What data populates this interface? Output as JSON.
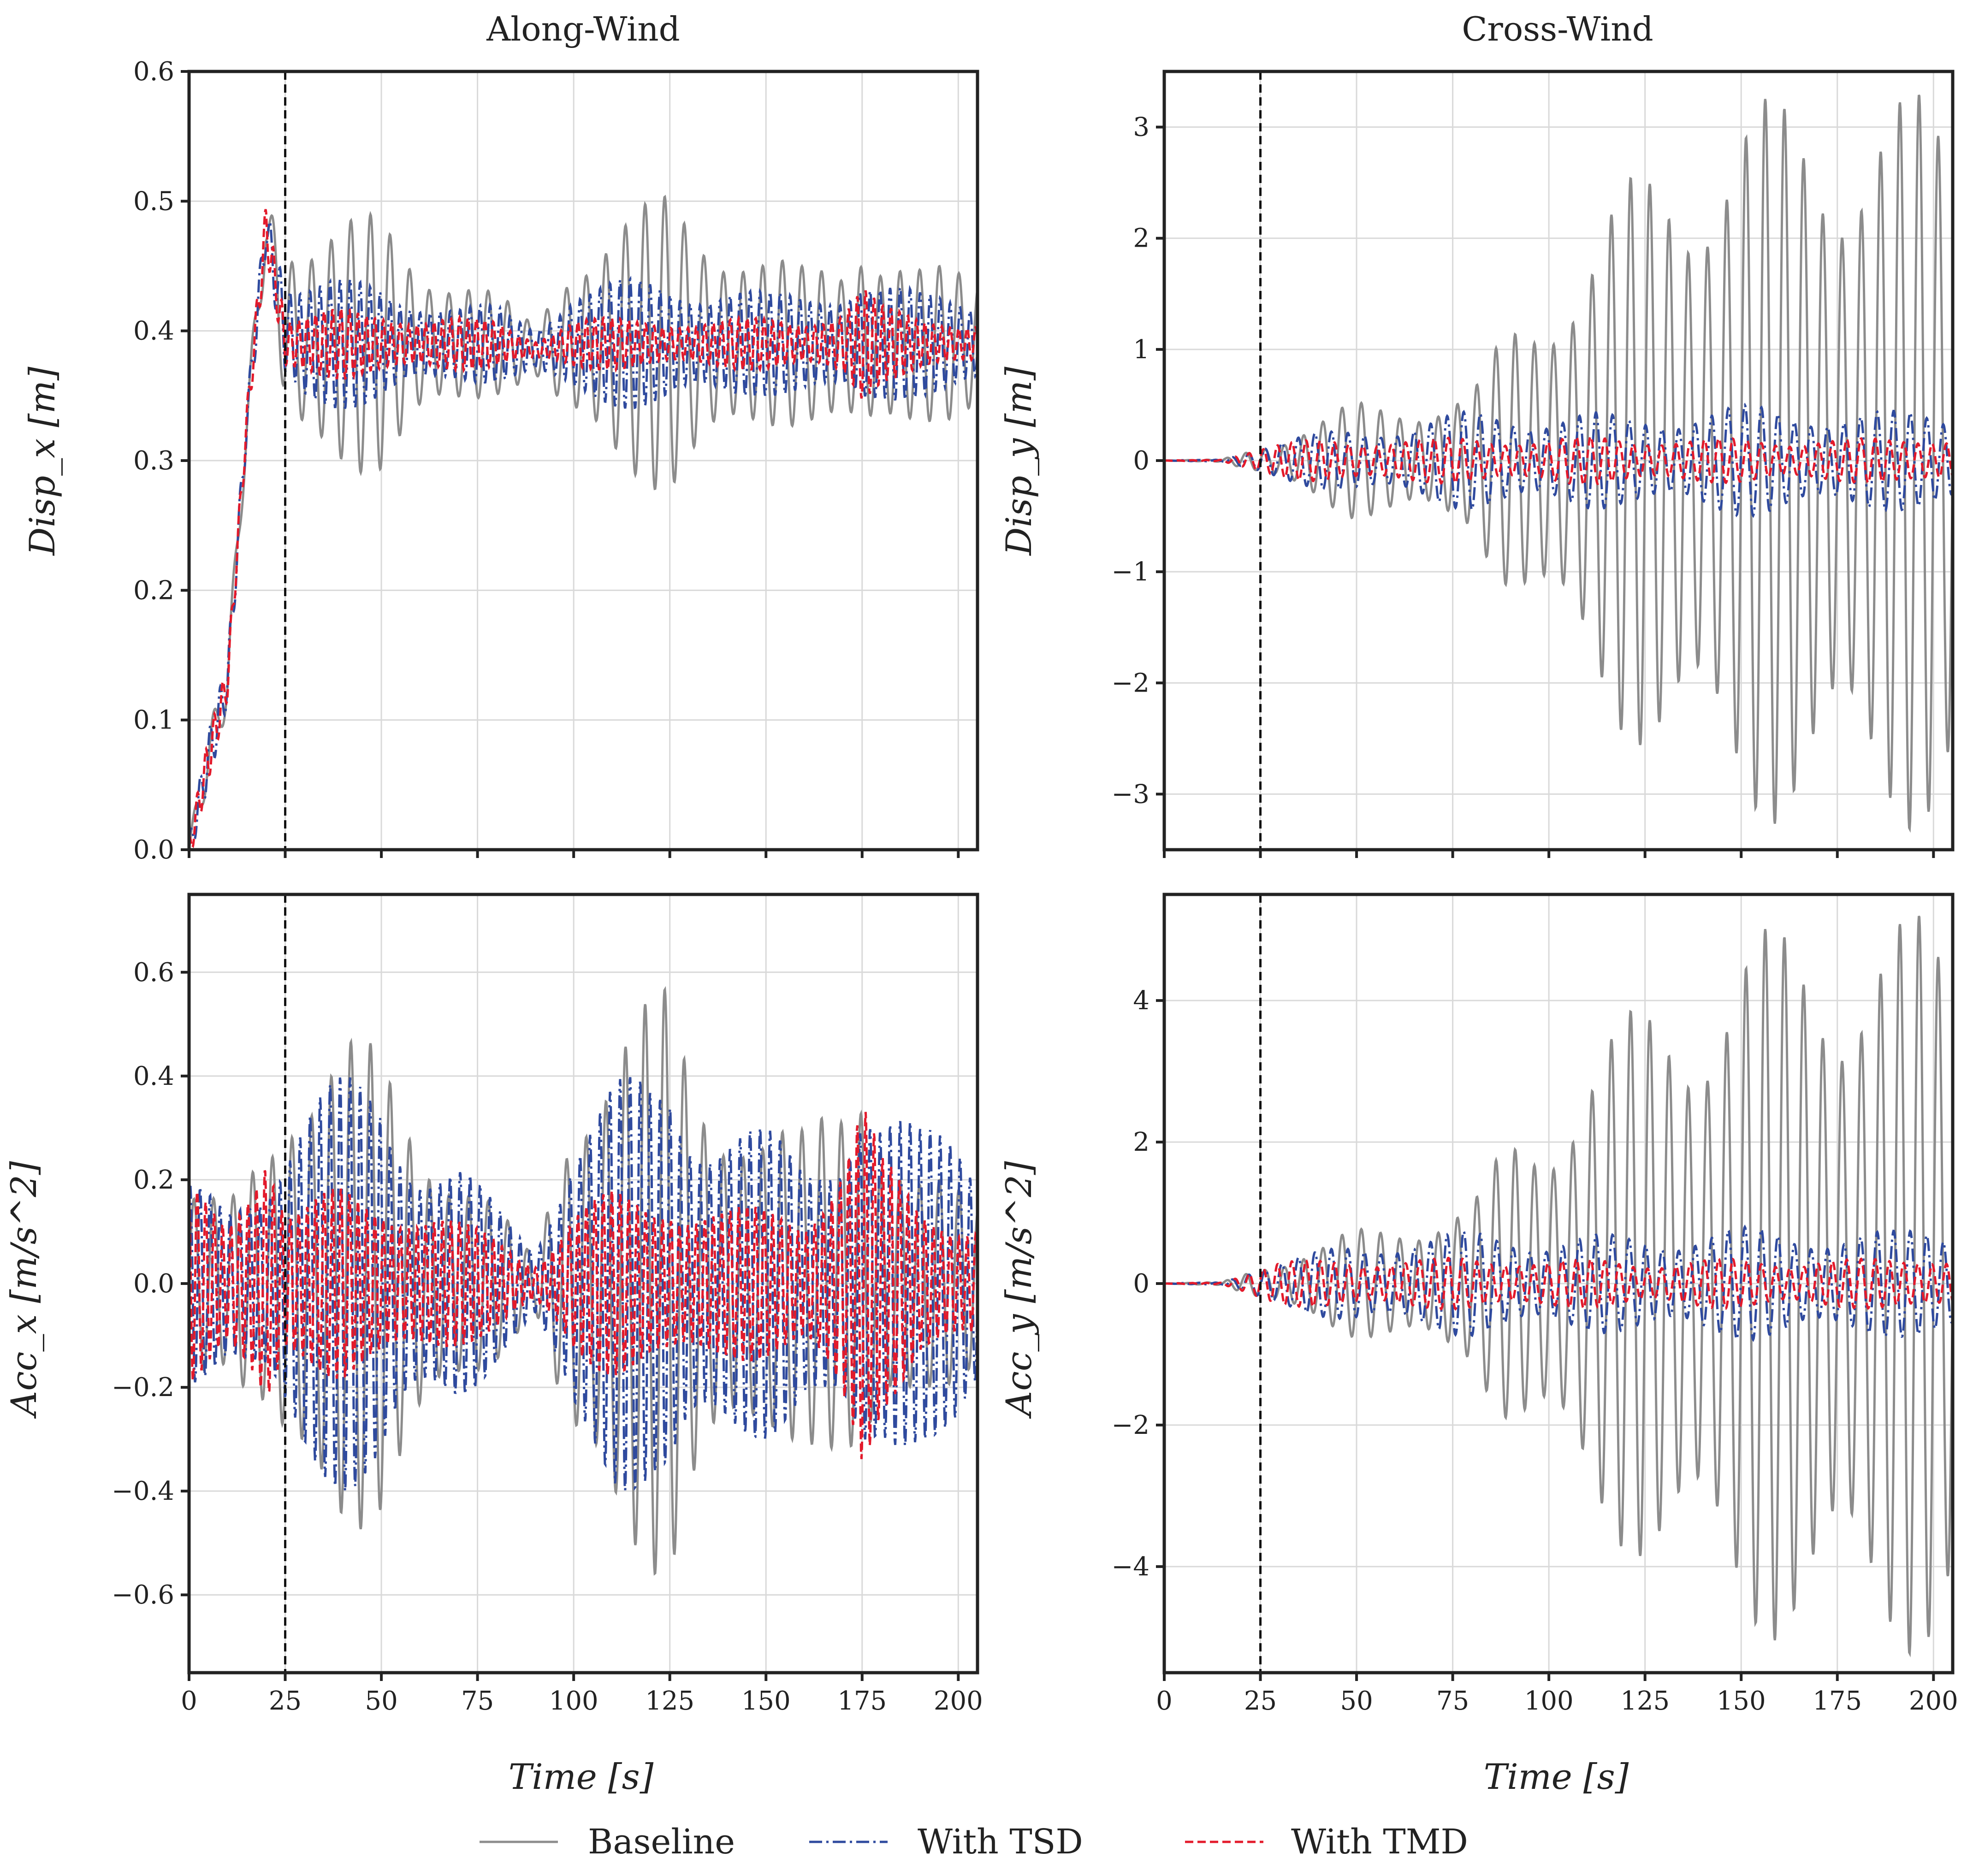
{
  "chart_data": [
    {
      "type": "line",
      "id": "along-disp",
      "title": "Along-Wind",
      "xlabel": "",
      "ylabel": "Disp_x [m]",
      "xlim": [
        0,
        205
      ],
      "ylim": [
        0,
        0.6
      ],
      "xticks": [
        "0",
        "25",
        "50",
        "75",
        "100",
        "125",
        "150",
        "175",
        "200"
      ],
      "yticks": [
        "0.0",
        "0.1",
        "0.2",
        "0.3",
        "0.4",
        "0.5",
        "0.6"
      ],
      "grid": true,
      "vline_x": 25,
      "series": [
        {
          "name": "Baseline",
          "env_x": [
            0,
            5,
            10,
            15,
            20,
            25,
            30,
            40,
            50,
            60,
            70,
            80,
            90,
            100,
            110,
            120,
            125,
            130,
            140,
            150,
            160,
            170,
            175,
            180,
            190,
            200,
            205
          ],
          "mean": [
            0,
            0.07,
            0.13,
            0.33,
            0.48,
            0.4,
            0.39,
            0.39,
            0.39,
            0.39,
            0.39,
            0.39,
            0.385,
            0.39,
            0.39,
            0.39,
            0.39,
            0.39,
            0.39,
            0.39,
            0.39,
            0.39,
            0.39,
            0.39,
            0.39,
            0.39,
            0.39
          ],
          "amp": [
            0.01,
            0.02,
            0.02,
            0.02,
            0.03,
            0.09,
            0.1,
            0.1,
            0.1,
            0.07,
            0.06,
            0.04,
            0.02,
            0.08,
            0.1,
            0.11,
            0.12,
            0.11,
            0.09,
            0.07,
            0.06,
            0.07,
            0.1,
            0.08,
            0.06,
            0.06,
            0.06
          ],
          "period": 5.1
        },
        {
          "name": "With TSD",
          "env_x": [
            0,
            5,
            10,
            15,
            20,
            25,
            30,
            40,
            50,
            60,
            70,
            80,
            90,
            100,
            110,
            120,
            125,
            130,
            140,
            150,
            160,
            170,
            175,
            180,
            190,
            200,
            205
          ],
          "mean": [
            0,
            0.07,
            0.13,
            0.33,
            0.48,
            0.4,
            0.39,
            0.39,
            0.39,
            0.39,
            0.39,
            0.39,
            0.385,
            0.39,
            0.39,
            0.39,
            0.39,
            0.39,
            0.39,
            0.39,
            0.39,
            0.39,
            0.39,
            0.39,
            0.39,
            0.39,
            0.39
          ],
          "amp": [
            0.01,
            0.02,
            0.02,
            0.02,
            0.03,
            0.05,
            0.05,
            0.05,
            0.05,
            0.04,
            0.03,
            0.03,
            0.02,
            0.05,
            0.05,
            0.05,
            0.05,
            0.05,
            0.05,
            0.04,
            0.04,
            0.05,
            0.06,
            0.05,
            0.04,
            0.04,
            0.04
          ],
          "period": 2.6
        },
        {
          "name": "With TMD",
          "env_x": [
            0,
            5,
            10,
            15,
            20,
            25,
            30,
            40,
            50,
            60,
            70,
            80,
            90,
            100,
            110,
            120,
            125,
            130,
            140,
            150,
            160,
            170,
            175,
            180,
            190,
            200,
            205
          ],
          "mean": [
            0,
            0.07,
            0.13,
            0.33,
            0.48,
            0.39,
            0.39,
            0.39,
            0.39,
            0.39,
            0.39,
            0.39,
            0.385,
            0.39,
            0.39,
            0.39,
            0.39,
            0.39,
            0.39,
            0.39,
            0.39,
            0.39,
            0.39,
            0.39,
            0.39,
            0.39,
            0.39
          ],
          "amp": [
            0.01,
            0.02,
            0.02,
            0.02,
            0.03,
            0.02,
            0.02,
            0.03,
            0.03,
            0.02,
            0.02,
            0.02,
            0.01,
            0.02,
            0.02,
            0.02,
            0.02,
            0.02,
            0.02,
            0.02,
            0.02,
            0.03,
            0.05,
            0.03,
            0.02,
            0.02,
            0.02
          ],
          "period": 2.2
        }
      ]
    },
    {
      "type": "line",
      "id": "cross-disp",
      "title": "Cross-Wind",
      "xlabel": "",
      "ylabel": "Disp_y [m]",
      "xlim": [
        0,
        205
      ],
      "ylim": [
        -3.5,
        3.5
      ],
      "xticks": [
        "0",
        "25",
        "50",
        "75",
        "100",
        "125",
        "150",
        "175",
        "200"
      ],
      "yticks": [
        "−3",
        "−2",
        "−1",
        "0",
        "1",
        "2",
        "3"
      ],
      "grid": true,
      "vline_x": 25,
      "series": [
        {
          "name": "Baseline",
          "env_x": [
            0,
            15,
            20,
            25,
            30,
            40,
            50,
            60,
            70,
            80,
            90,
            100,
            110,
            120,
            130,
            140,
            150,
            160,
            170,
            180,
            190,
            200,
            205
          ],
          "mean": [
            0,
            0,
            0,
            0,
            0,
            0,
            0,
            0,
            0,
            0,
            0,
            0,
            0,
            0,
            0,
            0,
            0,
            0,
            0,
            0,
            0,
            0,
            0
          ],
          "amp": [
            0,
            0.01,
            0.08,
            0.15,
            0.2,
            0.35,
            0.55,
            0.6,
            0.55,
            0.6,
            1.3,
            1.7,
            2.0,
            2.5,
            2.9,
            3.1,
            3.2,
            3.3,
            3.4,
            3.3,
            3.3,
            3.35,
            3.3
          ],
          "period": 5.0
        },
        {
          "name": "With TSD",
          "env_x": [
            0,
            15,
            20,
            25,
            30,
            40,
            50,
            60,
            70,
            80,
            90,
            100,
            110,
            120,
            130,
            140,
            150,
            160,
            170,
            180,
            190,
            200,
            205
          ],
          "mean": [
            0,
            0,
            0,
            0,
            0,
            0,
            0,
            0,
            0,
            0,
            0,
            0,
            0,
            0,
            0,
            0,
            0,
            0,
            0,
            0,
            0,
            0,
            0
          ],
          "amp": [
            0,
            0.01,
            0.08,
            0.15,
            0.2,
            0.25,
            0.3,
            0.35,
            0.4,
            0.45,
            0.45,
            0.45,
            0.45,
            0.4,
            0.45,
            0.5,
            0.5,
            0.5,
            0.5,
            0.45,
            0.45,
            0.5,
            0.5
          ],
          "period": 4.3
        },
        {
          "name": "With TMD",
          "env_x": [
            0,
            15,
            20,
            25,
            30,
            40,
            50,
            60,
            70,
            80,
            90,
            100,
            110,
            120,
            130,
            140,
            150,
            160,
            170,
            180,
            190,
            200,
            205
          ],
          "mean": [
            0,
            0,
            0,
            0,
            0,
            0,
            0,
            0,
            0,
            0,
            0,
            0,
            0,
            0,
            0,
            0,
            0,
            0,
            0,
            0,
            0,
            0,
            0
          ],
          "amp": [
            0,
            0.01,
            0.08,
            0.12,
            0.15,
            0.2,
            0.22,
            0.2,
            0.2,
            0.22,
            0.22,
            0.2,
            0.22,
            0.22,
            0.22,
            0.2,
            0.2,
            0.2,
            0.22,
            0.2,
            0.2,
            0.25,
            0.25
          ],
          "period": 3.7
        }
      ]
    },
    {
      "type": "line",
      "id": "along-acc",
      "title": "",
      "xlabel": "Time [s]",
      "ylabel": "Acc_x [m/s^2]",
      "xlim": [
        0,
        205
      ],
      "ylim": [
        -0.75,
        0.75
      ],
      "xticks": [
        "0",
        "25",
        "50",
        "75",
        "100",
        "125",
        "150",
        "175",
        "200"
      ],
      "yticks": [
        "−0.6",
        "−0.4",
        "−0.2",
        "0.0",
        "0.2",
        "0.4",
        "0.6"
      ],
      "grid": true,
      "vline_x": 25,
      "series": [
        {
          "name": "Baseline",
          "env_x": [
            0,
            10,
            20,
            25,
            30,
            40,
            50,
            60,
            70,
            80,
            90,
            100,
            110,
            120,
            125,
            130,
            140,
            150,
            160,
            170,
            175,
            180,
            190,
            200,
            205
          ],
          "mean": [
            0,
            0,
            0,
            0,
            0,
            0,
            0,
            0,
            0,
            0,
            0,
            0,
            0,
            0,
            0,
            0,
            0,
            0,
            0,
            0,
            0,
            0,
            0,
            0,
            0
          ],
          "amp": [
            0.2,
            0.15,
            0.3,
            0.45,
            0.5,
            0.5,
            0.45,
            0.35,
            0.25,
            0.15,
            0.05,
            0.45,
            0.5,
            0.55,
            0.6,
            0.5,
            0.4,
            0.3,
            0.3,
            0.45,
            0.55,
            0.3,
            0.2,
            0.2,
            0.2
          ],
          "period": 5.1
        },
        {
          "name": "With TSD",
          "env_x": [
            0,
            10,
            20,
            25,
            30,
            40,
            50,
            60,
            70,
            80,
            90,
            100,
            110,
            120,
            125,
            130,
            140,
            150,
            160,
            170,
            175,
            180,
            190,
            200,
            205
          ],
          "mean": [
            0,
            0,
            0,
            0,
            0,
            0,
            0,
            0,
            0,
            0,
            0,
            0,
            0,
            0,
            0,
            0,
            0,
            0,
            0,
            0,
            0,
            0,
            0,
            0,
            0
          ],
          "amp": [
            0.2,
            0.15,
            0.25,
            0.35,
            0.4,
            0.4,
            0.4,
            0.3,
            0.25,
            0.15,
            0.08,
            0.35,
            0.4,
            0.4,
            0.45,
            0.4,
            0.35,
            0.3,
            0.25,
            0.35,
            0.45,
            0.35,
            0.3,
            0.35,
            0.3
          ],
          "period": 2.6
        },
        {
          "name": "With TMD",
          "env_x": [
            0,
            10,
            20,
            25,
            30,
            40,
            50,
            60,
            70,
            80,
            90,
            100,
            110,
            120,
            125,
            130,
            140,
            150,
            160,
            170,
            175,
            180,
            190,
            200,
            205
          ],
          "mean": [
            0,
            0,
            0,
            0,
            0,
            0,
            0,
            0,
            0,
            0,
            0,
            0,
            0,
            0,
            0,
            0,
            0,
            0,
            0,
            0,
            0,
            0,
            0,
            0,
            0
          ],
          "amp": [
            0.2,
            0.15,
            0.35,
            0.15,
            0.15,
            0.2,
            0.2,
            0.15,
            0.12,
            0.1,
            0.05,
            0.15,
            0.18,
            0.18,
            0.2,
            0.18,
            0.15,
            0.15,
            0.15,
            0.3,
            0.4,
            0.25,
            0.15,
            0.15,
            0.15
          ],
          "period": 2.2
        }
      ]
    },
    {
      "type": "line",
      "id": "cross-acc",
      "title": "",
      "xlabel": "Time [s]",
      "ylabel": "Acc_y [m/s^2]",
      "xlim": [
        0,
        205
      ],
      "ylim": [
        -5.5,
        5.5
      ],
      "xticks": [
        "0",
        "25",
        "50",
        "75",
        "100",
        "125",
        "150",
        "175",
        "200"
      ],
      "yticks": [
        "−4",
        "−2",
        "0",
        "2",
        "4"
      ],
      "grid": true,
      "vline_x": 25,
      "series": [
        {
          "name": "Baseline",
          "env_x": [
            0,
            15,
            20,
            25,
            30,
            40,
            50,
            60,
            70,
            80,
            90,
            100,
            110,
            120,
            130,
            140,
            150,
            160,
            170,
            180,
            190,
            200,
            205
          ],
          "mean": [
            0,
            0,
            0,
            0,
            0,
            0,
            0,
            0,
            0,
            0,
            0,
            0,
            0,
            0,
            0,
            0,
            0,
            0,
            0,
            0,
            0,
            0,
            0
          ],
          "amp": [
            0,
            0.02,
            0.15,
            0.3,
            0.35,
            0.5,
            0.8,
            1.0,
            1.0,
            1.1,
            2.2,
            2.6,
            3.3,
            3.8,
            4.3,
            4.6,
            4.9,
            5.1,
            5.3,
            5.2,
            5.2,
            5.3,
            5.2
          ],
          "period": 5.0
        },
        {
          "name": "With TSD",
          "env_x": [
            0,
            15,
            20,
            25,
            30,
            40,
            50,
            60,
            70,
            80,
            90,
            100,
            110,
            120,
            130,
            140,
            150,
            160,
            170,
            180,
            190,
            200,
            205
          ],
          "mean": [
            0,
            0,
            0,
            0,
            0,
            0,
            0,
            0,
            0,
            0,
            0,
            0,
            0,
            0,
            0,
            0,
            0,
            0,
            0,
            0,
            0,
            0,
            0
          ],
          "amp": [
            0,
            0.02,
            0.15,
            0.3,
            0.35,
            0.45,
            0.6,
            0.7,
            0.7,
            0.75,
            0.75,
            0.7,
            0.7,
            0.7,
            0.75,
            0.8,
            0.8,
            0.8,
            0.8,
            0.75,
            0.75,
            0.9,
            0.9
          ],
          "period": 4.3
        },
        {
          "name": "With TMD",
          "env_x": [
            0,
            15,
            20,
            25,
            30,
            40,
            50,
            60,
            70,
            80,
            90,
            100,
            110,
            120,
            130,
            140,
            150,
            160,
            170,
            180,
            190,
            200,
            205
          ],
          "mean": [
            0,
            0,
            0,
            0,
            0,
            0,
            0,
            0,
            0,
            0,
            0,
            0,
            0,
            0,
            0,
            0,
            0,
            0,
            0,
            0,
            0,
            0,
            0
          ],
          "amp": [
            0,
            0.02,
            0.15,
            0.25,
            0.3,
            0.35,
            0.4,
            0.35,
            0.35,
            0.4,
            0.4,
            0.35,
            0.35,
            0.35,
            0.35,
            0.35,
            0.35,
            0.35,
            0.4,
            0.35,
            0.35,
            0.45,
            0.45
          ],
          "period": 3.7
        }
      ]
    }
  ],
  "legend": {
    "placement": "bottom-center",
    "items": [
      {
        "label": "Baseline",
        "color": "#8c8c8c",
        "style": "solid"
      },
      {
        "label": "With TSD",
        "color": "#2f4a9e",
        "style": "dashdot"
      },
      {
        "label": "With TMD",
        "color": "#e31a2b",
        "style": "dashed"
      }
    ]
  }
}
